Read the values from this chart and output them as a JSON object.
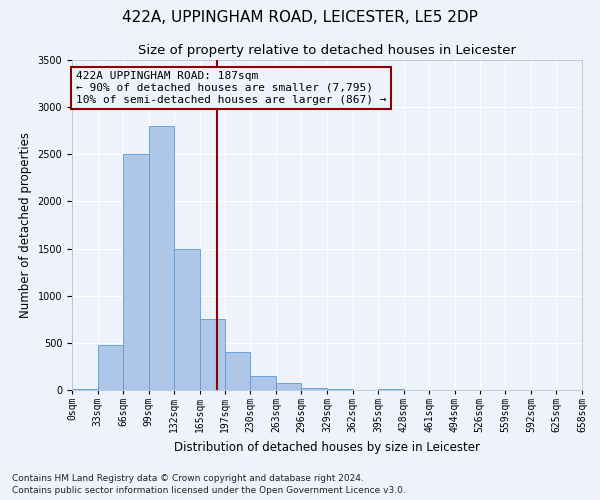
{
  "title": "422A, UPPINGHAM ROAD, LEICESTER, LE5 2DP",
  "subtitle": "Size of property relative to detached houses in Leicester",
  "xlabel": "Distribution of detached houses by size in Leicester",
  "ylabel": "Number of detached properties",
  "bin_edges": [
    0,
    33,
    66,
    99,
    132,
    165,
    197,
    230,
    263,
    296,
    329,
    362,
    395,
    428,
    461,
    494,
    526,
    559,
    592,
    625,
    658
  ],
  "bin_labels": [
    "0sqm",
    "33sqm",
    "66sqm",
    "99sqm",
    "132sqm",
    "165sqm",
    "197sqm",
    "230sqm",
    "263sqm",
    "296sqm",
    "329sqm",
    "362sqm",
    "395sqm",
    "428sqm",
    "461sqm",
    "494sqm",
    "526sqm",
    "559sqm",
    "592sqm",
    "625sqm",
    "658sqm"
  ],
  "bar_heights": [
    10,
    475,
    2500,
    2800,
    1500,
    750,
    400,
    150,
    75,
    25,
    10,
    0,
    10,
    0,
    0,
    0,
    0,
    0,
    0,
    0
  ],
  "bar_color": "#aec6e8",
  "bar_edge_color": "#5b9bd5",
  "property_line_x": 187,
  "property_line_color": "#8b0000",
  "annotation_text": "422A UPPINGHAM ROAD: 187sqm\n← 90% of detached houses are smaller (7,795)\n10% of semi-detached houses are larger (867) →",
  "annotation_box_color": "#8b0000",
  "ylim": [
    0,
    3500
  ],
  "yticks": [
    0,
    500,
    1000,
    1500,
    2000,
    2500,
    3000,
    3500
  ],
  "footnote1": "Contains HM Land Registry data © Crown copyright and database right 2024.",
  "footnote2": "Contains public sector information licensed under the Open Government Licence v3.0.",
  "background_color": "#eef2fa",
  "grid_color": "#ffffff",
  "title_fontsize": 11,
  "subtitle_fontsize": 9.5,
  "axis_label_fontsize": 8.5,
  "tick_fontsize": 7,
  "annotation_fontsize": 8,
  "footnote_fontsize": 6.5
}
